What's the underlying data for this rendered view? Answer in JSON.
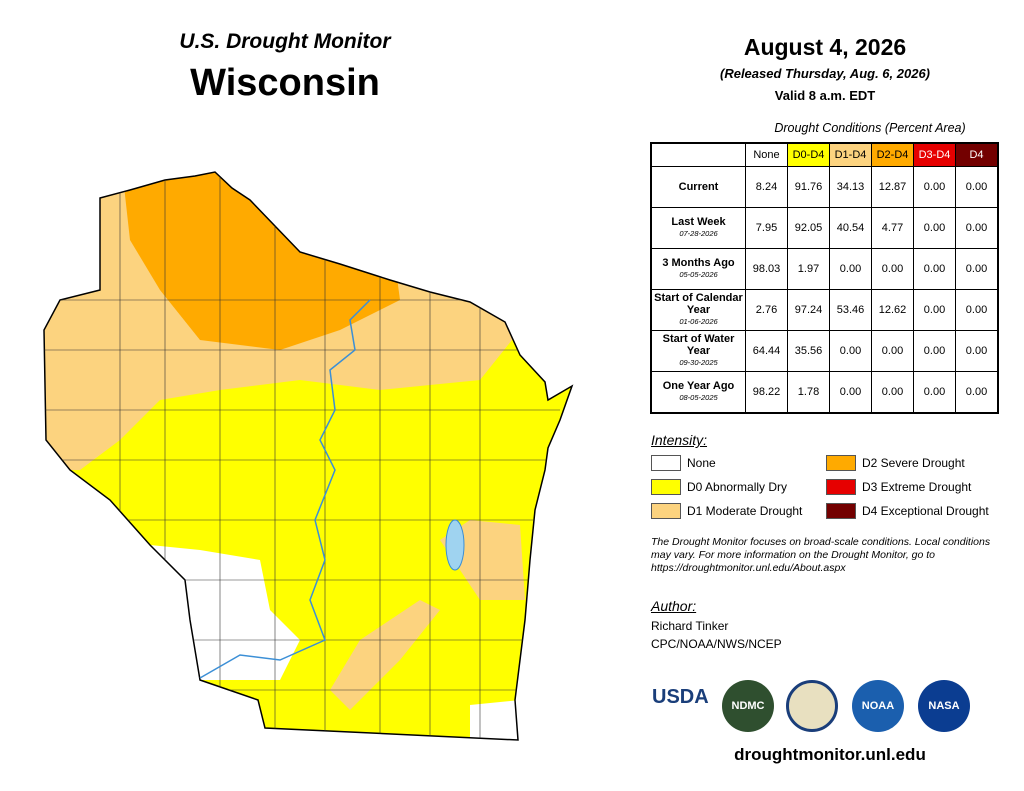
{
  "header": {
    "title": "U.S. Drought Monitor",
    "state": "Wisconsin",
    "date": "August 4, 2026",
    "released": "(Released Thursday, Aug. 6, 2026)",
    "valid": "Valid 8 a.m. EDT"
  },
  "table": {
    "caption": "Drought Conditions (Percent Area)",
    "columns": [
      "None",
      "D0-D4",
      "D1-D4",
      "D2-D4",
      "D3-D4",
      "D4"
    ],
    "rows": [
      {
        "label": "Current",
        "date": null,
        "values": [
          "8.24",
          "91.76",
          "34.13",
          "12.87",
          "0.00",
          "0.00"
        ]
      },
      {
        "label": "Last Week",
        "date": "07-28-2026",
        "values": [
          "7.95",
          "92.05",
          "40.54",
          "4.77",
          "0.00",
          "0.00"
        ]
      },
      {
        "label": "3 Months Ago",
        "date": "05-05-2026",
        "values": [
          "98.03",
          "1.97",
          "0.00",
          "0.00",
          "0.00",
          "0.00"
        ]
      },
      {
        "label": "Start of Calendar Year",
        "date": "01-06-2026",
        "values": [
          "2.76",
          "97.24",
          "53.46",
          "12.62",
          "0.00",
          "0.00"
        ]
      },
      {
        "label": "Start of Water Year",
        "date": "09-30-2025",
        "values": [
          "64.44",
          "35.56",
          "0.00",
          "0.00",
          "0.00",
          "0.00"
        ]
      },
      {
        "label": "One Year Ago",
        "date": "08-05-2025",
        "values": [
          "98.22",
          "1.78",
          "0.00",
          "0.00",
          "0.00",
          "0.00"
        ]
      }
    ]
  },
  "legend": {
    "title": "Intensity:",
    "items": [
      {
        "label": "None",
        "color": "#ffffff"
      },
      {
        "label": "D0 Abnormally Dry",
        "color": "#ffff00"
      },
      {
        "label": "D1 Moderate Drought",
        "color": "#fcd37f"
      },
      {
        "label": "D2 Severe Drought",
        "color": "#ffaa00"
      },
      {
        "label": "D3 Extreme Drought",
        "color": "#e60000"
      },
      {
        "label": "D4 Exceptional Drought",
        "color": "#730000"
      }
    ]
  },
  "note": "The Drought Monitor focuses on broad-scale conditions. Local conditions may vary. For more information on the Drought Monitor, go to https://droughtmonitor.unl.edu/About.aspx",
  "author": {
    "heading": "Author:",
    "name": "Richard Tinker",
    "org": "CPC/NOAA/NWS/NCEP"
  },
  "logos": [
    "USDA",
    "NDMC",
    "NOAA",
    "NASA"
  ],
  "url": "droughtmonitor.unl.edu"
}
